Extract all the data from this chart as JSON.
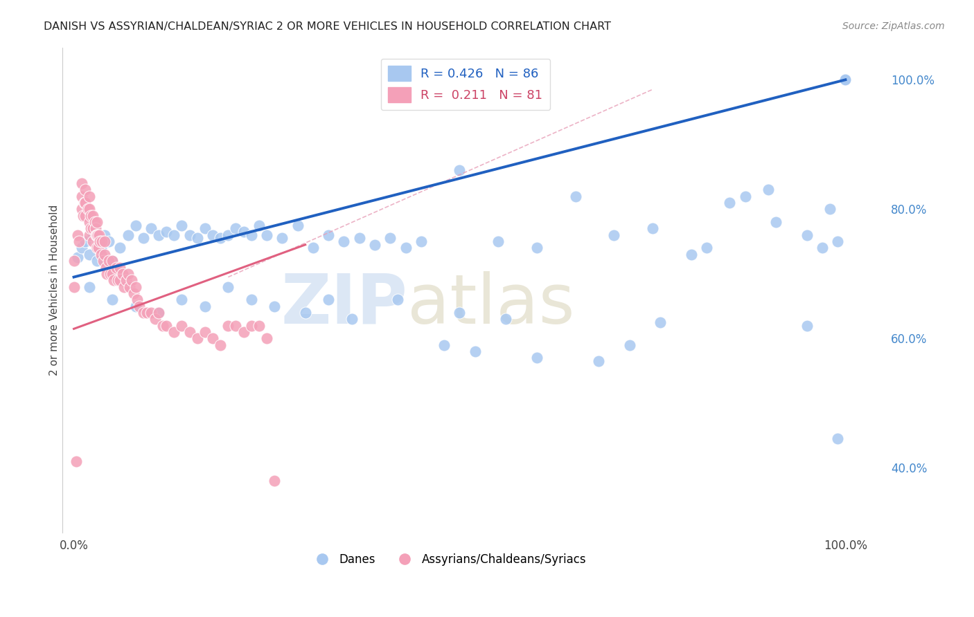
{
  "title": "DANISH VS ASSYRIAN/CHALDEAN/SYRIAC 2 OR MORE VEHICLES IN HOUSEHOLD CORRELATION CHART",
  "source": "Source: ZipAtlas.com",
  "ylabel": "2 or more Vehicles in Household",
  "right_yticks": [
    "40.0%",
    "60.0%",
    "80.0%",
    "100.0%"
  ],
  "right_ytick_vals": [
    0.4,
    0.6,
    0.8,
    1.0
  ],
  "legend_blue_label": "Danes",
  "legend_pink_label": "Assyrians/Chaldeans/Syriacs",
  "r_blue": 0.426,
  "n_blue": 86,
  "r_pink": 0.211,
  "n_pink": 81,
  "blue_color": "#A8C8F0",
  "pink_color": "#F4A0B8",
  "blue_line_color": "#2060C0",
  "pink_line_color": "#E06080",
  "diag_line_color": "#E8A0B8",
  "watermark_zip": "ZIP",
  "watermark_atlas": "atlas",
  "ylim_min": 0.3,
  "ylim_max": 1.05,
  "xlim_min": -0.015,
  "xlim_max": 1.05,
  "blue_x": [
    0.005,
    0.01,
    0.015,
    0.02,
    0.025,
    0.03,
    0.035,
    0.04,
    0.045,
    0.05,
    0.06,
    0.07,
    0.08,
    0.09,
    0.1,
    0.11,
    0.12,
    0.13,
    0.14,
    0.15,
    0.16,
    0.17,
    0.18,
    0.19,
    0.2,
    0.21,
    0.22,
    0.23,
    0.24,
    0.25,
    0.27,
    0.29,
    0.31,
    0.33,
    0.35,
    0.37,
    0.39,
    0.41,
    0.43,
    0.45,
    0.5,
    0.55,
    0.6,
    0.65,
    0.7,
    0.75,
    0.8,
    0.85,
    0.9,
    0.95,
    0.97,
    0.98,
    0.99,
    1.0,
    1.0,
    1.0,
    1.0,
    0.02,
    0.05,
    0.08,
    0.11,
    0.14,
    0.17,
    0.2,
    0.23,
    0.26,
    0.3,
    0.33,
    0.36,
    0.42,
    0.48,
    0.5,
    0.52,
    0.56,
    0.6,
    0.68,
    0.72,
    0.76,
    0.82,
    0.87,
    0.91,
    0.95,
    0.99
  ],
  "blue_y": [
    0.725,
    0.74,
    0.75,
    0.73,
    0.76,
    0.72,
    0.74,
    0.76,
    0.75,
    0.72,
    0.74,
    0.76,
    0.775,
    0.755,
    0.77,
    0.76,
    0.765,
    0.76,
    0.775,
    0.76,
    0.755,
    0.77,
    0.76,
    0.755,
    0.76,
    0.77,
    0.765,
    0.76,
    0.775,
    0.76,
    0.755,
    0.775,
    0.74,
    0.76,
    0.75,
    0.755,
    0.745,
    0.755,
    0.74,
    0.75,
    0.86,
    0.75,
    0.74,
    0.82,
    0.76,
    0.77,
    0.73,
    0.81,
    0.83,
    0.76,
    0.74,
    0.8,
    0.75,
    1.0,
    1.0,
    1.0,
    1.0,
    0.68,
    0.66,
    0.65,
    0.64,
    0.66,
    0.65,
    0.68,
    0.66,
    0.65,
    0.64,
    0.66,
    0.63,
    0.66,
    0.59,
    0.64,
    0.58,
    0.63,
    0.57,
    0.565,
    0.59,
    0.625,
    0.74,
    0.82,
    0.78,
    0.62,
    0.445
  ],
  "pink_x": [
    0.0,
    0.0,
    0.003,
    0.005,
    0.007,
    0.01,
    0.01,
    0.01,
    0.012,
    0.014,
    0.015,
    0.015,
    0.015,
    0.018,
    0.02,
    0.02,
    0.02,
    0.02,
    0.022,
    0.022,
    0.025,
    0.025,
    0.025,
    0.027,
    0.028,
    0.029,
    0.03,
    0.03,
    0.03,
    0.031,
    0.032,
    0.033,
    0.034,
    0.035,
    0.036,
    0.038,
    0.04,
    0.04,
    0.042,
    0.043,
    0.045,
    0.047,
    0.05,
    0.05,
    0.052,
    0.055,
    0.057,
    0.06,
    0.06,
    0.063,
    0.065,
    0.068,
    0.07,
    0.072,
    0.075,
    0.078,
    0.08,
    0.082,
    0.085,
    0.09,
    0.095,
    0.1,
    0.105,
    0.11,
    0.115,
    0.12,
    0.13,
    0.14,
    0.15,
    0.16,
    0.17,
    0.18,
    0.19,
    0.2,
    0.21,
    0.22,
    0.23,
    0.24,
    0.25,
    0.26
  ],
  "pink_y": [
    0.72,
    0.68,
    0.41,
    0.76,
    0.75,
    0.84,
    0.82,
    0.8,
    0.79,
    0.81,
    0.83,
    0.81,
    0.79,
    0.8,
    0.82,
    0.8,
    0.78,
    0.76,
    0.79,
    0.77,
    0.79,
    0.77,
    0.75,
    0.78,
    0.77,
    0.76,
    0.74,
    0.76,
    0.78,
    0.76,
    0.74,
    0.76,
    0.75,
    0.73,
    0.75,
    0.72,
    0.75,
    0.73,
    0.71,
    0.7,
    0.72,
    0.7,
    0.72,
    0.7,
    0.69,
    0.71,
    0.69,
    0.71,
    0.69,
    0.7,
    0.68,
    0.69,
    0.7,
    0.68,
    0.69,
    0.67,
    0.68,
    0.66,
    0.65,
    0.64,
    0.64,
    0.64,
    0.63,
    0.64,
    0.62,
    0.62,
    0.61,
    0.62,
    0.61,
    0.6,
    0.61,
    0.6,
    0.59,
    0.62,
    0.62,
    0.61,
    0.62,
    0.62,
    0.6,
    0.38
  ]
}
